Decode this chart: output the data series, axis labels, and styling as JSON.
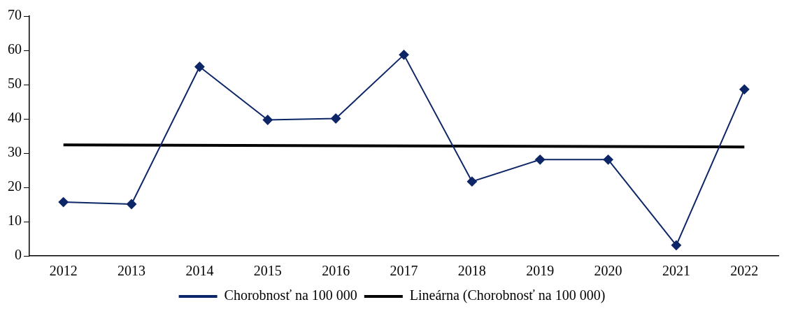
{
  "chart_data": {
    "type": "line",
    "categories": [
      "2012",
      "2013",
      "2014",
      "2015",
      "2016",
      "2017",
      "2018",
      "2019",
      "2020",
      "2021",
      "2022"
    ],
    "ylim": [
      0,
      70
    ],
    "yticks": [
      0,
      10,
      20,
      30,
      40,
      50,
      60,
      70
    ],
    "grid": false,
    "legend": "bottom",
    "series": [
      {
        "name": "Chorobnosť na 100 000",
        "color": "#0d2667",
        "marker": "diamond",
        "values": [
          15.7,
          15.1,
          55.2,
          39.7,
          40.1,
          58.7,
          21.7,
          28.1,
          28.1,
          3.1,
          48.6
        ]
      },
      {
        "name": "Lineárna (Chorobnosť na 100 000)",
        "type": "line",
        "color": "#000000",
        "marker": "none",
        "values": [
          32.4,
          null,
          null,
          null,
          null,
          null,
          null,
          null,
          null,
          null,
          31.8
        ]
      }
    ]
  }
}
